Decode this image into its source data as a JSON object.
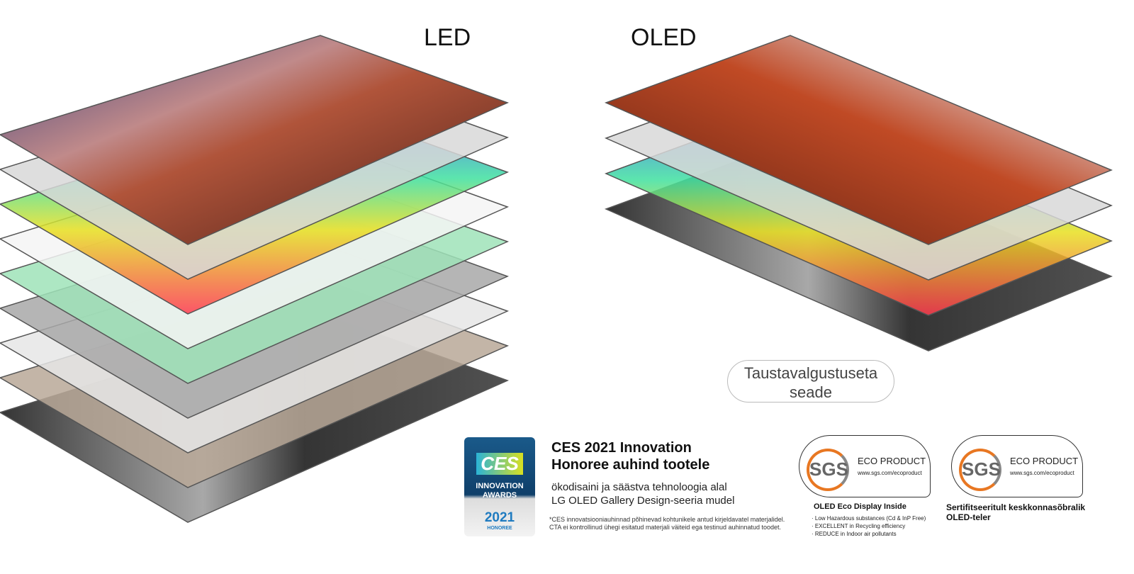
{
  "labels": {
    "led": "LED",
    "oled": "OLED"
  },
  "backlight_pill": {
    "line1": "Taustavalgustuseta",
    "line2": "seade"
  },
  "led_layers": [
    {
      "name": "display-image",
      "color": "#7a3b2a"
    },
    {
      "name": "polarizer",
      "color": "#d8d8d8"
    },
    {
      "name": "color-filter",
      "color": "#4a6ee0"
    },
    {
      "name": "liquid-crystal",
      "color": "#f4f4f4"
    },
    {
      "name": "optical-sheet",
      "color": "#9fe3b8"
    },
    {
      "name": "diffuser",
      "color": "#a8a8a8"
    },
    {
      "name": "grid-sheet",
      "color": "#e6e6e6"
    },
    {
      "name": "led-backlight",
      "color": "#b8a898"
    },
    {
      "name": "back-cover",
      "color": "#222222"
    }
  ],
  "oled_layers": [
    {
      "name": "display-image",
      "color": "#9a3a22"
    },
    {
      "name": "polarizer",
      "color": "#d8d8d8"
    },
    {
      "name": "oled-color-layer",
      "color": "#3a6cf0"
    },
    {
      "name": "back-cover",
      "color": "#222222"
    }
  ],
  "ces": {
    "badge_logo": "CES",
    "badge_innovation": "INNOVATION",
    "badge_awards": "AWARDS",
    "badge_year": "2021",
    "badge_honoree": "HONOREE",
    "title_line1": "CES 2021 Innovation",
    "title_line2": "Honoree auhind tootele",
    "sub_line1": "ökodisaini ja säästva tehnoloogia alal",
    "sub_line2": "LG OLED Gallery Design-seeria mudel",
    "note_line1": "*CES innovatsiooniauhinnad põhinevad kohtunikele antud kirjeldavatel materjalidel.",
    "note_line2": "CTA ei kontrollinud ühegi esitatud materjali väiteid ega testinud auhinnatud toodet."
  },
  "sgs1": {
    "logo": "SGS",
    "eco": "ECO PRODUCT",
    "url": "www.sgs.com/ecoproduct",
    "caption": "OLED Eco Display Inside",
    "items": [
      "· Low Hazardous substances (Cd & InP Free)",
      "· EXCELLENT in Recycling efficiency",
      "· REDUCE in Indoor air pollutants"
    ]
  },
  "sgs2": {
    "logo": "SGS",
    "eco": "ECO PRODUCT",
    "url": "www.sgs.com/ecoproduct",
    "caption_line1": "Sertifitseeritult keskkonnasõbralik",
    "caption_line2": "OLED-teler"
  }
}
